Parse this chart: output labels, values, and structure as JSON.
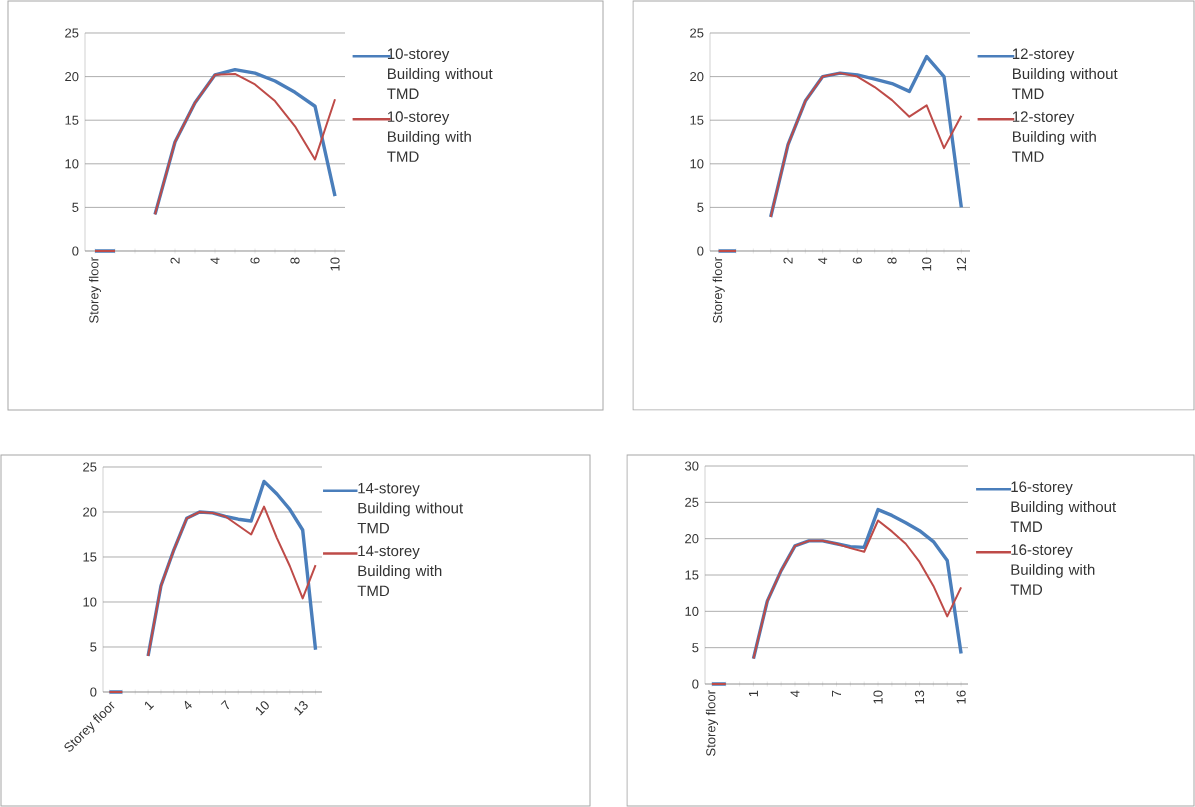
{
  "chart_data": [
    {
      "type": "line",
      "categories": [
        "Storey floor",
        null,
        null,
        null,
        "2",
        null,
        "4",
        null,
        "6",
        null,
        "8",
        null,
        "10"
      ],
      "ylim": [
        0,
        25
      ],
      "yticks": [
        0,
        5,
        10,
        15,
        20,
        25
      ],
      "grid": "y",
      "legend": "right",
      "marker": "none",
      "line_style": "solid",
      "series": [
        {
          "name": "10-storey Building without TMD",
          "color": "#4a7ebb",
          "values": [
            0,
            0,
            null,
            4.2,
            12.5,
            17,
            20.2,
            20.8,
            20.4,
            19.5,
            18.2,
            16.6,
            6.3
          ]
        },
        {
          "name": "10-storey Building with TMD",
          "color": "#be4b48",
          "values": [
            0,
            0,
            null,
            4.2,
            12.5,
            17,
            20.2,
            20.3,
            19.1,
            17.2,
            14.3,
            10.5,
            17.4
          ]
        }
      ]
    },
    {
      "type": "line",
      "categories": [
        "Storey floor",
        null,
        null,
        null,
        "2",
        null,
        "4",
        null,
        "6",
        null,
        "8",
        null,
        "10",
        null,
        "12"
      ],
      "ylim": [
        0,
        25
      ],
      "yticks": [
        0,
        5,
        10,
        15,
        20,
        25
      ],
      "grid": "y",
      "legend": "right",
      "marker": "none",
      "line_style": "solid",
      "series": [
        {
          "name": "12-storey Building without TMD",
          "color": "#4a7ebb",
          "values": [
            0,
            0,
            null,
            3.9,
            12.2,
            17.2,
            20,
            20.4,
            20.2,
            19.7,
            19.2,
            18.3,
            22.3,
            20,
            5
          ]
        },
        {
          "name": "12-storey Building with TMD",
          "color": "#be4b48",
          "values": [
            0,
            0,
            null,
            3.9,
            12.2,
            17.2,
            20,
            20.4,
            20,
            18.8,
            17.3,
            15.4,
            16.7,
            11.8,
            15.5
          ]
        }
      ]
    },
    {
      "type": "line",
      "categories": [
        "Storey floor",
        null,
        null,
        "1",
        null,
        null,
        "4",
        null,
        null,
        "7",
        null,
        null,
        "10",
        null,
        null,
        "13",
        null
      ],
      "ylim": [
        0,
        25
      ],
      "yticks": [
        0,
        5,
        10,
        15,
        20,
        25
      ],
      "grid": "y",
      "legend": "right",
      "marker": "none",
      "line_style": "solid",
      "series": [
        {
          "name": "14-storey Building without TMD",
          "color": "#4a7ebb",
          "values": [
            0,
            0,
            null,
            4,
            11.8,
            15.8,
            19.3,
            20,
            19.9,
            19.5,
            19.2,
            19,
            23.4,
            22,
            20.3,
            18,
            4.7
          ]
        },
        {
          "name": "14-storey Building with TMD",
          "color": "#be4b48",
          "values": [
            0,
            0,
            null,
            4,
            11.8,
            15.8,
            19.3,
            20,
            19.9,
            19.5,
            18.5,
            17.5,
            20.6,
            17.1,
            14,
            10.4,
            14.1
          ]
        }
      ]
    },
    {
      "type": "line",
      "categories": [
        "Storey floor",
        null,
        null,
        "1",
        null,
        null,
        "4",
        null,
        null,
        "7",
        null,
        null,
        "10",
        null,
        null,
        "13",
        null,
        null,
        "16"
      ],
      "ylim": [
        0,
        30
      ],
      "yticks": [
        0,
        5,
        10,
        15,
        20,
        25,
        30
      ],
      "grid": "y",
      "legend": "right",
      "marker": "none",
      "line_style": "solid",
      "series": [
        {
          "name": "16-storey Building without TMD",
          "color": "#4a7ebb",
          "values": [
            0,
            0,
            null,
            3.5,
            11.4,
            15.6,
            19,
            19.7,
            19.7,
            19.3,
            18.9,
            18.8,
            24,
            23.2,
            22.2,
            21.1,
            19.6,
            17,
            4.2
          ]
        },
        {
          "name": "16-storey Building with TMD",
          "color": "#be4b48",
          "values": [
            0,
            0,
            null,
            3.5,
            11.4,
            15.6,
            19,
            19.7,
            19.7,
            19.3,
            18.7,
            18.2,
            22.5,
            21,
            19.3,
            16.8,
            13.5,
            9.3,
            13.3
          ]
        }
      ]
    }
  ]
}
